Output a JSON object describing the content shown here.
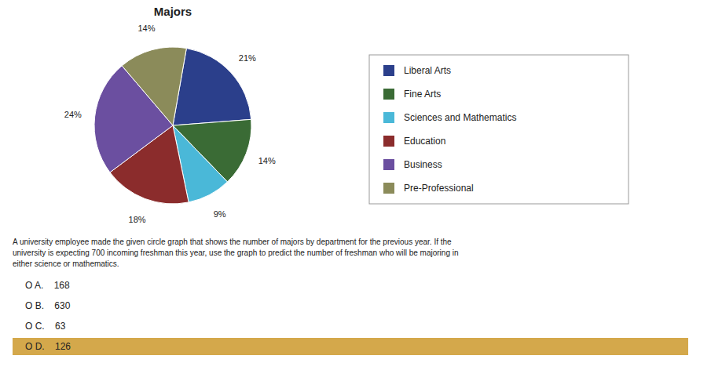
{
  "chart_data": {
    "type": "pie",
    "title": "Majors",
    "categories": [
      "Liberal Arts",
      "Fine Arts",
      "Sciences and Mathematics",
      "Education",
      "Business",
      "Pre-Professional"
    ],
    "values": [
      21,
      14,
      9,
      18,
      24,
      14
    ],
    "value_labels": [
      "21%",
      "14%",
      "9%",
      "18%",
      "24%",
      "14%"
    ],
    "colors": [
      "#2b3f8b",
      "#3a6b35",
      "#4ab8d8",
      "#8b2c2c",
      "#6b4fa0",
      "#8b8b5a"
    ],
    "data_labels": true,
    "legend": "right",
    "annotations": [
      {
        "text": "A university employee made the given circle graph that shows the number of majors by department for the previous year. If the\nuniversity is expecting 700 incoming freshman this year, use the graph to predict the number of freshman who will be majoring in\neither science or mathematics."
      },
      {
        "text": "O A.    168"
      },
      {
        "text": "O B.    630"
      },
      {
        "text": "O C.    63"
      },
      {
        "text": "O D.    126",
        "color": "#d4a84b"
      }
    ]
  }
}
